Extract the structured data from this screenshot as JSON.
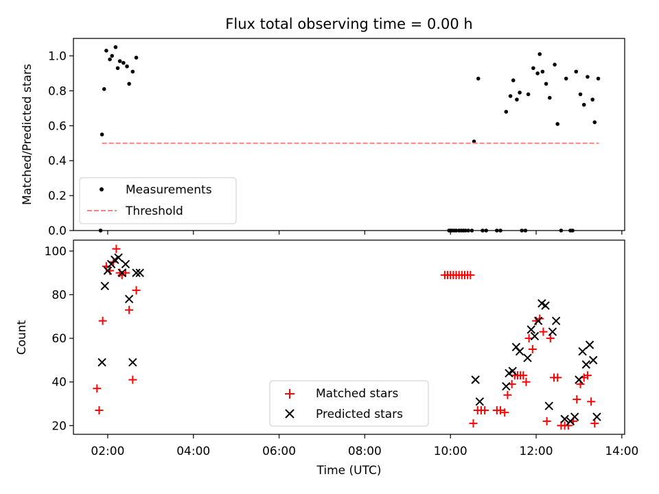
{
  "chart_data": [
    {
      "type": "scatter",
      "title": "Flux total observing time = 0.00 h",
      "ylabel": "Matched/Predicted stars",
      "xlabel": "",
      "xlim": [
        "01:12",
        "14:04"
      ],
      "ylim": [
        0,
        1.1
      ],
      "yticks": [
        0.0,
        0.2,
        0.4,
        0.6,
        0.8,
        1.0
      ],
      "ytick_labels": [
        "0.0",
        "0.2",
        "0.4",
        "0.6",
        "0.8",
        "1.0"
      ],
      "xticks": [
        "02:00",
        "04:00",
        "06:00",
        "08:00",
        "10:00",
        "12:00",
        "14:00"
      ],
      "grid": false,
      "legend": {
        "placement": "lower-left",
        "entries": [
          "Measurements",
          "Threshold"
        ]
      },
      "series": [
        {
          "name": "Measurements",
          "marker": "dot",
          "color": "#000000",
          "points": [
            [
              "01:50",
              0.0
            ],
            [
              "01:52",
              0.55
            ],
            [
              "01:55",
              0.81
            ],
            [
              "01:58",
              1.03
            ],
            [
              "02:03",
              0.98
            ],
            [
              "02:06",
              1.0
            ],
            [
              "02:11",
              1.05
            ],
            [
              "02:14",
              0.93
            ],
            [
              "02:17",
              0.97
            ],
            [
              "02:22",
              0.96
            ],
            [
              "02:27",
              0.94
            ],
            [
              "02:30",
              0.84
            ],
            [
              "02:35",
              0.91
            ],
            [
              "02:40",
              0.99
            ],
            [
              "09:58",
              0.0
            ],
            [
              "10:00",
              0.0
            ],
            [
              "10:02",
              0.0
            ],
            [
              "10:05",
              0.0
            ],
            [
              "10:08",
              0.0
            ],
            [
              "10:12",
              0.0
            ],
            [
              "10:15",
              0.0
            ],
            [
              "10:18",
              0.0
            ],
            [
              "10:21",
              0.0
            ],
            [
              "10:25",
              0.0
            ],
            [
              "10:30",
              0.0
            ],
            [
              "10:33",
              0.51
            ],
            [
              "10:39",
              0.87
            ],
            [
              "10:45",
              0.0
            ],
            [
              "10:50",
              0.0
            ],
            [
              "11:05",
              0.0
            ],
            [
              "11:10",
              0.0
            ],
            [
              "11:18",
              0.68
            ],
            [
              "11:24",
              0.77
            ],
            [
              "11:28",
              0.86
            ],
            [
              "11:33",
              0.75
            ],
            [
              "11:37",
              0.79
            ],
            [
              "11:40",
              0.0
            ],
            [
              "11:45",
              0.0
            ],
            [
              "11:49",
              0.78
            ],
            [
              "11:56",
              0.93
            ],
            [
              "12:02",
              0.9
            ],
            [
              "12:05",
              1.01
            ],
            [
              "12:09",
              0.91
            ],
            [
              "12:14",
              0.84
            ],
            [
              "12:19",
              0.76
            ],
            [
              "12:26",
              0.95
            ],
            [
              "12:30",
              0.61
            ],
            [
              "12:35",
              0.0
            ],
            [
              "12:42",
              0.87
            ],
            [
              "12:48",
              0.0
            ],
            [
              "12:51",
              0.0
            ],
            [
              "12:56",
              0.91
            ],
            [
              "13:02",
              0.78
            ],
            [
              "13:07",
              0.72
            ],
            [
              "13:12",
              0.88
            ],
            [
              "13:19",
              0.75
            ],
            [
              "13:22",
              0.62
            ],
            [
              "13:27",
              0.87
            ]
          ]
        },
        {
          "name": "Threshold",
          "style": "dashed",
          "color": "#ff7f7f",
          "points": [
            [
              "01:52",
              0.5
            ],
            [
              "13:28",
              0.5
            ]
          ]
        }
      ]
    },
    {
      "type": "scatter",
      "title": "",
      "xlabel": "Time (UTC)",
      "ylabel": "Count",
      "xlim": [
        "01:12",
        "14:04"
      ],
      "ylim": [
        16,
        105
      ],
      "yticks": [
        20,
        40,
        60,
        80,
        100
      ],
      "ytick_labels": [
        "20",
        "40",
        "60",
        "80",
        "100"
      ],
      "xticks": [
        "02:00",
        "04:00",
        "06:00",
        "08:00",
        "10:00",
        "12:00",
        "14:00"
      ],
      "xtick_labels": [
        "02:00",
        "04:00",
        "06:00",
        "08:00",
        "10:00",
        "12:00",
        "14:00"
      ],
      "grid": false,
      "legend": {
        "placement": "lower-center",
        "entries": [
          "Matched stars",
          "Predicted stars"
        ]
      },
      "series": [
        {
          "name": "Matched stars",
          "marker": "plus",
          "color": "#ff0000",
          "points": [
            [
              "01:45",
              37
            ],
            [
              "01:48",
              27
            ],
            [
              "01:53",
              68
            ],
            [
              "01:58",
              93
            ],
            [
              "02:03",
              91
            ],
            [
              "02:08",
              95
            ],
            [
              "02:12",
              101
            ],
            [
              "02:17",
              90
            ],
            [
              "02:20",
              89
            ],
            [
              "02:25",
              90
            ],
            [
              "02:30",
              73
            ],
            [
              "02:35",
              41
            ],
            [
              "02:40",
              82
            ],
            [
              "09:52",
              89
            ],
            [
              "09:56",
              89
            ],
            [
              "10:00",
              89
            ],
            [
              "10:04",
              89
            ],
            [
              "10:08",
              89
            ],
            [
              "10:12",
              89
            ],
            [
              "10:16",
              89
            ],
            [
              "10:20",
              89
            ],
            [
              "10:24",
              89
            ],
            [
              "10:28",
              89
            ],
            [
              "10:32",
              21
            ],
            [
              "10:38",
              27
            ],
            [
              "10:43",
              27
            ],
            [
              "10:48",
              27
            ],
            [
              "11:05",
              27
            ],
            [
              "11:10",
              27
            ],
            [
              "11:16",
              26
            ],
            [
              "11:20",
              34
            ],
            [
              "11:26",
              39
            ],
            [
              "11:30",
              43
            ],
            [
              "11:34",
              43
            ],
            [
              "11:38",
              43
            ],
            [
              "11:42",
              43
            ],
            [
              "11:46",
              40
            ],
            [
              "11:50",
              60
            ],
            [
              "11:55",
              55
            ],
            [
              "12:00",
              68
            ],
            [
              "12:05",
              69
            ],
            [
              "12:10",
              63
            ],
            [
              "12:15",
              22
            ],
            [
              "12:20",
              60
            ],
            [
              "12:25",
              42
            ],
            [
              "12:30",
              42
            ],
            [
              "12:35",
              20
            ],
            [
              "12:40",
              20
            ],
            [
              "12:45",
              20
            ],
            [
              "12:52",
              22
            ],
            [
              "12:57",
              32
            ],
            [
              "13:02",
              39
            ],
            [
              "13:07",
              42
            ],
            [
              "13:12",
              43
            ],
            [
              "13:17",
              31
            ],
            [
              "13:22",
              21
            ]
          ]
        },
        {
          "name": "Predicted stars",
          "marker": "x",
          "color": "#000000",
          "points": [
            [
              "01:52",
              49
            ],
            [
              "01:56",
              84
            ],
            [
              "02:00",
              91
            ],
            [
              "02:05",
              94
            ],
            [
              "02:10",
              96
            ],
            [
              "02:15",
              97
            ],
            [
              "02:20",
              90
            ],
            [
              "02:25",
              94
            ],
            [
              "02:30",
              78
            ],
            [
              "02:35",
              49
            ],
            [
              "02:40",
              90
            ],
            [
              "02:45",
              90
            ],
            [
              "10:35",
              41
            ],
            [
              "10:41",
              31
            ],
            [
              "11:18",
              38
            ],
            [
              "11:22",
              44
            ],
            [
              "11:27",
              45
            ],
            [
              "11:32",
              56
            ],
            [
              "11:37",
              54
            ],
            [
              "11:48",
              51
            ],
            [
              "11:53",
              64
            ],
            [
              "11:58",
              61
            ],
            [
              "12:03",
              68
            ],
            [
              "12:08",
              76
            ],
            [
              "12:13",
              75
            ],
            [
              "12:18",
              29
            ],
            [
              "12:23",
              63
            ],
            [
              "12:28",
              68
            ],
            [
              "12:40",
              23
            ],
            [
              "12:48",
              22
            ],
            [
              "12:54",
              24
            ],
            [
              "13:00",
              41
            ],
            [
              "13:05",
              54
            ],
            [
              "13:10",
              48
            ],
            [
              "13:15",
              57
            ],
            [
              "13:20",
              50
            ],
            [
              "13:25",
              24
            ]
          ]
        }
      ]
    }
  ]
}
